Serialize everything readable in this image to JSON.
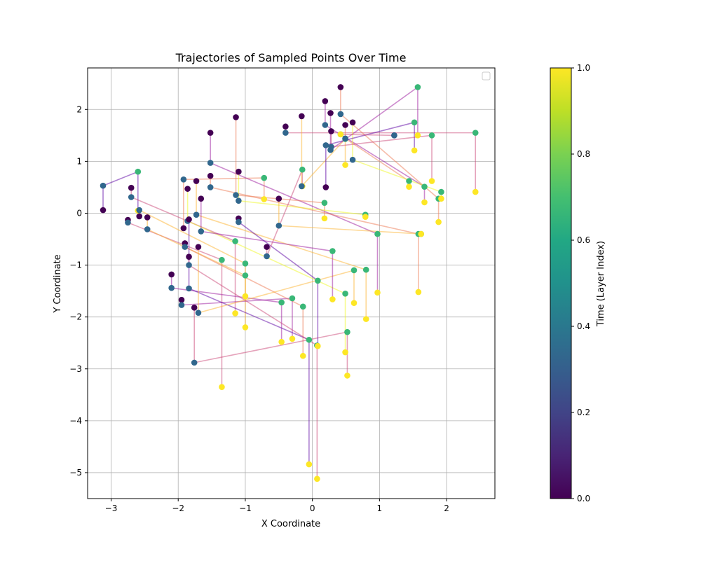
{
  "chart_data": {
    "type": "scatter",
    "title": "Trajectories of Sampled Points Over Time",
    "xlabel": "X Coordinate",
    "ylabel": "Y Coordinate",
    "xlim": [
      -3.35,
      2.72
    ],
    "ylim": [
      -5.5,
      2.8
    ],
    "xticks": [
      -3,
      -2,
      -1,
      0,
      1,
      2
    ],
    "yticks": [
      -5,
      -4,
      -3,
      -2,
      -1,
      0,
      1,
      2
    ],
    "xtick_labels": [
      "−3",
      "−2",
      "−1",
      "0",
      "1",
      "2"
    ],
    "ytick_labels": [
      "−5",
      "−4",
      "−3",
      "−2",
      "−1",
      "0",
      "1",
      "2"
    ],
    "grid": true,
    "legend": {
      "placement": "top-right",
      "entries": []
    },
    "colorbar": {
      "label": "Time (Layer Index)",
      "colormap": "viridis",
      "range": [
        0.0,
        1.0
      ],
      "ticks": [
        0.0,
        0.2,
        0.4,
        0.6,
        0.8,
        1.0
      ],
      "tick_labels": [
        "0.0",
        "0.2",
        "0.4",
        "0.6",
        "0.8",
        "1.0"
      ]
    },
    "trajectories": [
      {
        "points": [
          [
            -3.12,
            0.06
          ],
          [
            -3.12,
            0.53
          ],
          [
            -2.6,
            0.8
          ],
          [
            -2.6,
            0.05
          ]
        ]
      },
      {
        "points": [
          [
            -2.7,
            0.49
          ],
          [
            -2.7,
            0.31
          ],
          [
            -1.15,
            -0.54
          ],
          [
            -1.15,
            -1.93
          ]
        ]
      },
      {
        "points": [
          [
            -2.75,
            -0.13
          ],
          [
            -2.75,
            -0.18
          ],
          [
            -1.35,
            -0.9
          ],
          [
            -1.35,
            -3.35
          ]
        ]
      },
      {
        "points": [
          [
            -2.58,
            -0.06
          ],
          [
            -2.58,
            0.06
          ],
          [
            -1.0,
            -0.97
          ],
          [
            -1.0,
            -2.2
          ]
        ]
      },
      {
        "points": [
          [
            -2.46,
            -0.08
          ],
          [
            -2.46,
            -0.31
          ],
          [
            -1.0,
            -1.2
          ],
          [
            -1.0,
            -1.6
          ]
        ]
      },
      {
        "points": [
          [
            -2.1,
            -1.18
          ],
          [
            -2.1,
            -1.44
          ],
          [
            -0.46,
            -1.72
          ],
          [
            -0.46,
            -2.48
          ]
        ]
      },
      {
        "points": [
          [
            -1.95,
            -1.67
          ],
          [
            -1.95,
            -1.77
          ],
          [
            -0.3,
            -1.64
          ],
          [
            -0.3,
            -2.42
          ]
        ]
      },
      {
        "points": [
          [
            -1.92,
            -0.29
          ],
          [
            -1.92,
            0.65
          ],
          [
            -0.72,
            0.68
          ],
          [
            -0.72,
            0.27
          ]
        ]
      },
      {
        "points": [
          [
            -1.9,
            -0.58
          ],
          [
            -1.9,
            -0.65
          ],
          [
            -0.14,
            -1.8
          ],
          [
            -0.14,
            -2.75
          ]
        ]
      },
      {
        "points": [
          [
            -1.86,
            0.47
          ],
          [
            -1.86,
            -0.15
          ],
          [
            0.49,
            -1.55
          ],
          [
            0.49,
            -2.68
          ]
        ]
      },
      {
        "points": [
          [
            -1.84,
            -0.12
          ],
          [
            -1.84,
            -1.45
          ],
          [
            -0.05,
            -2.44
          ],
          [
            -0.05,
            -4.84
          ]
        ]
      },
      {
        "points": [
          [
            -1.84,
            -0.84
          ],
          [
            -1.84,
            -1.0
          ],
          [
            0.07,
            -2.55
          ],
          [
            0.07,
            -5.12
          ]
        ]
      },
      {
        "points": [
          [
            -1.76,
            -1.82
          ],
          [
            -1.76,
            -2.88
          ],
          [
            0.52,
            -2.29
          ],
          [
            0.52,
            -3.13
          ]
        ]
      },
      {
        "points": [
          [
            -1.73,
            0.62
          ],
          [
            -1.73,
            -0.03
          ],
          [
            0.8,
            -1.09
          ],
          [
            0.8,
            -2.04
          ]
        ]
      },
      {
        "points": [
          [
            -1.7,
            -0.65
          ],
          [
            -1.7,
            -1.92
          ],
          [
            0.62,
            -1.1
          ],
          [
            0.62,
            -1.73
          ]
        ]
      },
      {
        "points": [
          [
            -1.66,
            0.28
          ],
          [
            -1.66,
            -0.35
          ],
          [
            0.3,
            -0.73
          ],
          [
            0.3,
            -1.66
          ]
        ]
      },
      {
        "points": [
          [
            -1.52,
            1.55
          ],
          [
            -1.52,
            0.97
          ],
          [
            0.97,
            -0.4
          ],
          [
            0.97,
            -1.53
          ]
        ]
      },
      {
        "points": [
          [
            -1.52,
            0.72
          ],
          [
            -1.52,
            0.5
          ],
          [
            1.58,
            -0.4
          ],
          [
            1.58,
            -1.52
          ]
        ]
      },
      {
        "points": [
          [
            -1.14,
            1.85
          ],
          [
            -1.14,
            0.35
          ],
          [
            0.18,
            0.2
          ],
          [
            0.18,
            -0.1
          ]
        ]
      },
      {
        "points": [
          [
            -1.1,
            0.8
          ],
          [
            -1.1,
            0.24
          ],
          [
            0.79,
            -0.03
          ],
          [
            0.79,
            -0.07
          ]
        ]
      },
      {
        "points": [
          [
            -1.1,
            -0.1
          ],
          [
            -1.1,
            -0.17
          ],
          [
            0.08,
            -1.3
          ],
          [
            0.08,
            -2.56
          ]
        ]
      },
      {
        "points": [
          [
            -0.68,
            -0.65
          ],
          [
            -0.68,
            -0.83
          ],
          [
            -0.15,
            0.84
          ],
          [
            -0.15,
            0.52
          ]
        ]
      },
      {
        "points": [
          [
            -0.4,
            1.67
          ],
          [
            -0.4,
            1.55
          ],
          [
            2.43,
            1.55
          ],
          [
            2.43,
            0.41
          ]
        ]
      },
      {
        "points": [
          [
            -0.5,
            0.28
          ],
          [
            -0.5,
            -0.24
          ],
          [
            1.62,
            -0.4
          ],
          [
            1.62,
            -0.4
          ]
        ]
      },
      {
        "points": [
          [
            -0.16,
            1.87
          ],
          [
            -0.16,
            0.52
          ],
          [
            0.49,
            1.43
          ],
          [
            0.49,
            0.93
          ]
        ]
      },
      {
        "points": [
          [
            0.19,
            2.16
          ],
          [
            0.19,
            1.7
          ],
          [
            1.67,
            0.51
          ],
          [
            1.67,
            0.21
          ]
        ]
      },
      {
        "points": [
          [
            0.27,
            1.93
          ],
          [
            0.27,
            1.22
          ],
          [
            1.57,
            2.43
          ],
          [
            1.57,
            1.5
          ]
        ]
      },
      {
        "points": [
          [
            0.42,
            2.43
          ],
          [
            0.42,
            1.91
          ],
          [
            1.88,
            0.28
          ],
          [
            1.88,
            -0.17
          ]
        ]
      },
      {
        "points": [
          [
            0.49,
            1.7
          ],
          [
            0.49,
            1.44
          ],
          [
            1.44,
            0.62
          ],
          [
            1.44,
            0.51
          ]
        ]
      },
      {
        "points": [
          [
            0.6,
            1.75
          ],
          [
            0.6,
            1.03
          ],
          [
            1.92,
            0.41
          ],
          [
            1.92,
            0.28
          ]
        ]
      },
      {
        "points": [
          [
            0.2,
            0.5
          ],
          [
            0.2,
            1.31
          ],
          [
            1.52,
            1.75
          ],
          [
            1.52,
            1.21
          ]
        ]
      },
      {
        "points": [
          [
            0.28,
            1.58
          ],
          [
            0.28,
            1.28
          ],
          [
            1.78,
            1.5
          ],
          [
            1.78,
            0.62
          ]
        ]
      },
      {
        "points": [
          [
            1.22,
            1.5
          ],
          [
            1.22,
            1.5
          ],
          [
            0.42,
            1.52
          ],
          [
            0.42,
            1.52
          ]
        ]
      }
    ]
  }
}
